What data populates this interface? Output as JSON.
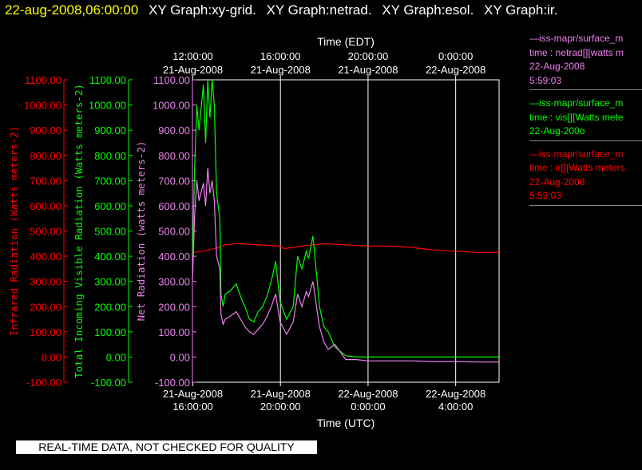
{
  "header": {
    "datetime": "22-aug-2008,06:00:00",
    "titles": [
      "XY Graph:xy-grid.",
      "XY Graph:netrad.",
      "XY Graph:esol.",
      "XY Graph:ir."
    ]
  },
  "banner": "REAL-TIME DATA, NOT CHECKED FOR QUALITY",
  "legend": [
    {
      "source": "—iss-mapr/surface_m",
      "var": "time : netrad[][watts m",
      "date": "22-Aug-2008",
      "time": "5:59:03",
      "color": "#ee82ee"
    },
    {
      "source": "—iss-mapr/surface_m",
      "var": "time : vis[][Watts mete",
      "date": "22-Aug-200o",
      "time": "",
      "color": "#00ff00"
    },
    {
      "source": "—iss-mapr/surface_m",
      "var": "time : ir[][Watts meters",
      "date": "22-Aug-2008",
      "time": "5:59:03",
      "color": "#ff0000"
    }
  ],
  "chart_data": {
    "type": "line",
    "top_axis": {
      "label": "Time (EDT)",
      "ticks": [
        {
          "time": "12:00:00",
          "date": "21-Aug-2008"
        },
        {
          "time": "16:00:00",
          "date": "21-Aug-2008"
        },
        {
          "time": "20:00:00",
          "date": "21-Aug-2008"
        },
        {
          "time": "0:00:00",
          "date": "22-Aug-2008"
        }
      ]
    },
    "bottom_axis": {
      "label": "Time (UTC)",
      "range_hours": [
        0,
        14
      ],
      "ticks": [
        {
          "date": "21-Aug-2008",
          "time": "16:00:00"
        },
        {
          "date": "21-Aug-2008",
          "time": "20:00:00"
        },
        {
          "date": "22-Aug-2008",
          "time": "0:00:00"
        },
        {
          "date": "22-Aug-2008",
          "time": "4:00:00"
        }
      ]
    },
    "y_axes": [
      {
        "label": "Infrared Radiation (Watts meters-2)",
        "color": "#ff0000",
        "ylim": [
          -100,
          1100
        ],
        "ticks": [
          "1100.00",
          "1000.00",
          "900.00",
          "800.00",
          "700.00",
          "600.00",
          "500.00",
          "400.00",
          "300.00",
          "200.00",
          "100.00",
          "0.00",
          "-100.00"
        ]
      },
      {
        "label": "Total Incoming Visible Radiation (Watts meters-2)",
        "color": "#00ff00",
        "ylim": [
          -100,
          1100
        ],
        "ticks": [
          "1100.00",
          "1000.00",
          "900.00",
          "800.00",
          "700.00",
          "600.00",
          "500.00",
          "400.00",
          "300.00",
          "200.00",
          "100.00",
          "0.00",
          "-100.00"
        ]
      },
      {
        "label": "Net Radiation (watts meters-2)",
        "color": "#ee82ee",
        "ylim": [
          -100,
          1100
        ],
        "ticks": [
          "1100.00",
          "1000.00",
          "900.00",
          "800.00",
          "700.00",
          "600.00",
          "500.00",
          "400.00",
          "300.00",
          "200.00",
          "100.00",
          "0.00",
          "-100.00"
        ]
      }
    ],
    "x_unit": "hours since 21-Aug-2008 16:00:00 UTC",
    "series": [
      {
        "name": "ir",
        "color": "#ff0000",
        "x": [
          0,
          0.5,
          1,
          1.5,
          2,
          3,
          4,
          4.2,
          5,
          6,
          7,
          8,
          9,
          10,
          10.5,
          11,
          12,
          13,
          14
        ],
        "y": [
          415,
          420,
          430,
          445,
          450,
          445,
          440,
          430,
          440,
          450,
          445,
          440,
          440,
          435,
          430,
          425,
          420,
          415,
          415
        ]
      },
      {
        "name": "vis",
        "color": "#00ff00",
        "x": [
          0,
          0.1,
          0.2,
          0.3,
          0.5,
          0.6,
          0.7,
          0.8,
          0.9,
          1.0,
          1.1,
          1.25,
          1.3,
          1.4,
          1.5,
          1.7,
          2.0,
          2.2,
          2.4,
          2.6,
          2.8,
          3.0,
          3.2,
          3.4,
          3.6,
          3.8,
          4.0,
          4.3,
          4.6,
          4.8,
          5.0,
          5.2,
          5.3,
          5.5,
          5.7,
          5.8,
          6.0,
          6.2,
          6.5,
          7.0,
          7.5,
          8.0,
          9.0,
          10.0,
          11.0,
          12.0,
          13.0,
          14.0
        ],
        "y": [
          400,
          750,
          1000,
          900,
          1080,
          850,
          1100,
          950,
          1100,
          1000,
          650,
          550,
          250,
          200,
          250,
          260,
          290,
          240,
          200,
          150,
          140,
          180,
          200,
          240,
          300,
          380,
          220,
          150,
          200,
          400,
          350,
          420,
          390,
          480,
          300,
          200,
          120,
          100,
          40,
          5,
          0,
          0,
          0,
          0,
          0,
          0,
          0,
          0
        ]
      },
      {
        "name": "netrad",
        "color": "#ee82ee",
        "x": [
          0,
          0.1,
          0.2,
          0.3,
          0.5,
          0.6,
          0.7,
          0.8,
          0.9,
          1.0,
          1.1,
          1.25,
          1.3,
          1.4,
          1.5,
          1.7,
          2.0,
          2.2,
          2.4,
          2.6,
          2.8,
          3.0,
          3.2,
          3.4,
          3.6,
          3.8,
          4.0,
          4.3,
          4.6,
          4.8,
          5.0,
          5.2,
          5.3,
          5.5,
          5.7,
          5.8,
          6.0,
          6.2,
          6.5,
          7.0,
          7.5,
          8.0,
          9.0,
          10.0,
          11.0,
          12.0,
          13.0,
          14.0
        ],
        "y": [
          300,
          560,
          700,
          620,
          690,
          600,
          750,
          650,
          700,
          620,
          400,
          350,
          170,
          130,
          150,
          160,
          180,
          150,
          120,
          100,
          90,
          110,
          130,
          160,
          200,
          250,
          140,
          90,
          140,
          250,
          200,
          260,
          240,
          300,
          180,
          120,
          60,
          30,
          50,
          -10,
          -10,
          -15,
          -15,
          -15,
          -18,
          -18,
          -20,
          -20
        ]
      }
    ]
  }
}
